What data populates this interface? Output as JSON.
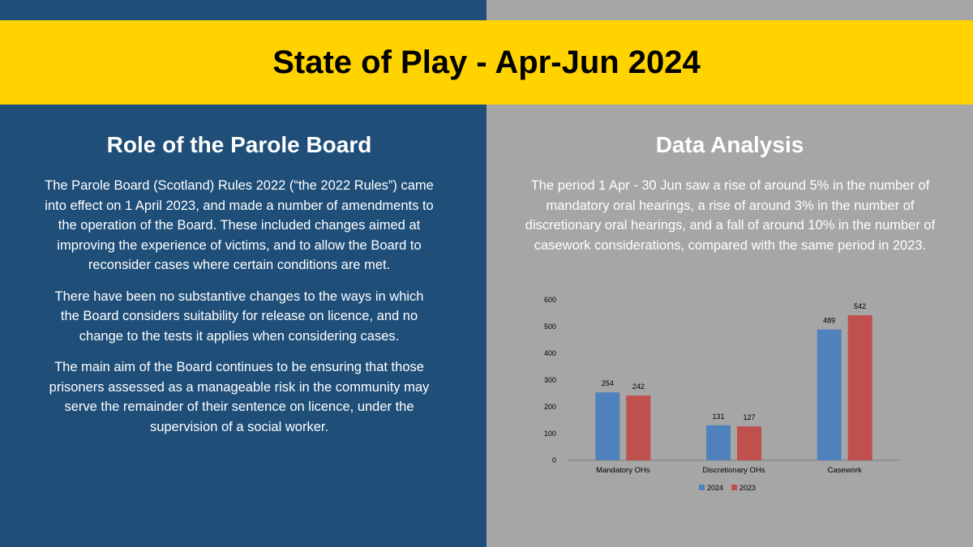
{
  "slide": {
    "title": "State of Play - Apr-Jun 2024"
  },
  "left": {
    "heading": "Role of the Parole Board",
    "paragraphs": [
      "The Parole Board (Scotland) Rules 2022 (“the 2022 Rules”) came into effect on 1 April 2023, and made a number of amendments to the operation of the Board. These included changes aimed at improving the experience of victims, and to allow the Board to reconsider cases where certain conditions are met.",
      "There have been no substantive changes to the ways in which the Board considers suitability for release on licence, and no change to the tests it applies when considering cases.",
      "The main aim of the Board continues to be ensuring that those prisoners assessed as a manageable risk in the community may serve the remainder of their sentence on licence, under the supervision of a social worker."
    ]
  },
  "right": {
    "heading": "Data Analysis",
    "summary": "The period 1 Apr - 30 Jun saw a rise of around 5% in the number of mandatory oral hearings, a rise of around 3% in the number of discretionary oral hearings, and a fall of around 10% in the number of casework considerations, compared with the same period in 2023."
  },
  "colors": {
    "left_bg": "#1f4e79",
    "right_bg": "#a6a6a6",
    "banner": "#ffd300",
    "series_2024": "#4f81bd",
    "series_2023": "#c0504d"
  },
  "chart_data": {
    "type": "bar",
    "title": "",
    "xlabel": "",
    "ylabel": "",
    "categories": [
      "Mandatory OHs",
      "Discretionary OHs",
      "Casework"
    ],
    "series": [
      {
        "name": "2024",
        "values": [
          254,
          131,
          489
        ]
      },
      {
        "name": "2023",
        "values": [
          242,
          127,
          542
        ]
      }
    ],
    "ylim": [
      0,
      600
    ],
    "yticks": [
      0,
      100,
      200,
      300,
      400,
      500,
      600
    ],
    "grid": false,
    "legend": "bottom",
    "data_labels": true
  }
}
